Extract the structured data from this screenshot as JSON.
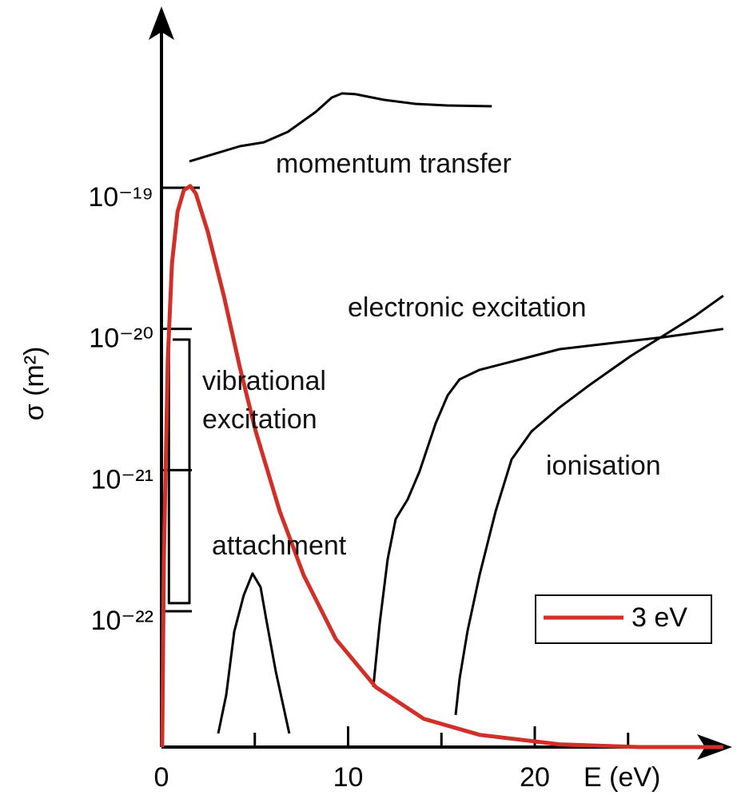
{
  "chart_data": {
    "type": "line",
    "ylabel": "σ (m²)",
    "xlabel": "E (eV)",
    "xlim": [
      0,
      30.3
    ],
    "xticks": [
      0,
      10,
      20
    ],
    "xminorticks": [
      5,
      15,
      25
    ],
    "ylim": [
      1.09e-23,
      1.76e-18
    ],
    "log_y": true,
    "yticks": [
      {
        "value": 1e-19,
        "label": "10⁻¹⁹"
      },
      {
        "value": 1e-20,
        "label": "10⁻²⁰"
      },
      {
        "value": 1e-21,
        "label": "10⁻²¹"
      },
      {
        "value": 1e-22,
        "label": "10⁻²²"
      }
    ],
    "series": [
      {
        "name": "momentum transfer",
        "color": "#000000",
        "x": [
          1.5,
          2.91,
          4.2,
          5.48,
          6.77,
          8.27,
          9.12,
          9.68,
          10.4,
          11.9,
          13.6,
          15.3,
          17.7
        ],
        "values": [
          1.54e-19,
          1.75e-19,
          1.97e-19,
          2.1e-19,
          2.49e-19,
          3.45e-19,
          4.36e-19,
          4.66e-19,
          4.6e-19,
          4.2e-19,
          3.93e-19,
          3.83e-19,
          3.78e-19
        ]
      },
      {
        "name": "electronic excitation",
        "color": "#000000",
        "x": [
          11.35,
          11.69,
          12.12,
          12.55,
          13.19,
          13.83,
          14.69,
          15.33,
          15.97,
          17.04,
          19.19,
          21.33,
          23.9,
          26.9,
          30.1
        ],
        "values": [
          2.9e-23,
          8.2e-23,
          2.34e-22,
          4.5e-22,
          6.2e-22,
          9.8e-22,
          2.14e-21,
          3.38e-21,
          4.39e-21,
          5.13e-21,
          6.07e-21,
          7.19e-21,
          7.87e-21,
          8.74e-21,
          1e-20
        ]
      },
      {
        "name": "ionisation",
        "color": "#000000",
        "x": [
          15.76,
          15.97,
          16.4,
          17.04,
          17.9,
          18.76,
          19.83,
          21.33,
          23.04,
          25.18,
          26.9,
          28.6,
          30.1
        ],
        "values": [
          1.84e-23,
          3.31e-23,
          7.23e-23,
          1.8e-22,
          5.1e-22,
          1.19e-21,
          1.88e-21,
          2.78e-21,
          4.1e-21,
          6.48e-21,
          8.97e-21,
          1.24e-20,
          1.72e-20
        ]
      },
      {
        "name": "attachment",
        "color": "#000000",
        "x": [
          3.04,
          3.47,
          3.9,
          4.41,
          4.88,
          5.31,
          5.61,
          6.12,
          6.85
        ],
        "values": [
          1.36e-23,
          2.55e-23,
          7.2e-23,
          1.3e-22,
          1.85e-22,
          1.48e-22,
          8.8e-23,
          3.77e-23,
          1.36e-23
        ]
      },
      {
        "name": "vibrational excitation",
        "color": "#000000",
        "x": [
          0.6,
          1.5,
          1.5,
          0.4,
          0.4
        ],
        "values": [
          8.4e-21,
          8.4e-21,
          1.14e-22,
          1.14e-22,
          1e-20
        ]
      },
      {
        "name": "3 eV",
        "color": "#d03028",
        "x": [
          0.04,
          0.13,
          0.34,
          0.56,
          0.86,
          1.2,
          1.54,
          1.84,
          2.48,
          3.34,
          4.2,
          5.05,
          6.34,
          7.62,
          9.34,
          11.48,
          14.05,
          17.04,
          21.33,
          25.61,
          30.1
        ],
        "values": [
          1.09e-23,
          2.33e-22,
          6.07e-21,
          2.9e-20,
          6.76e-20,
          9.6e-20,
          1.03e-19,
          9.1e-20,
          4.89e-20,
          1.72e-20,
          5.33e-21,
          1.88e-21,
          5.1e-22,
          1.8e-22,
          6.35e-23,
          2.9e-23,
          1.73e-23,
          1.33e-23,
          1.14e-23,
          1.09e-23,
          1.09e-23
        ]
      }
    ]
  }
}
